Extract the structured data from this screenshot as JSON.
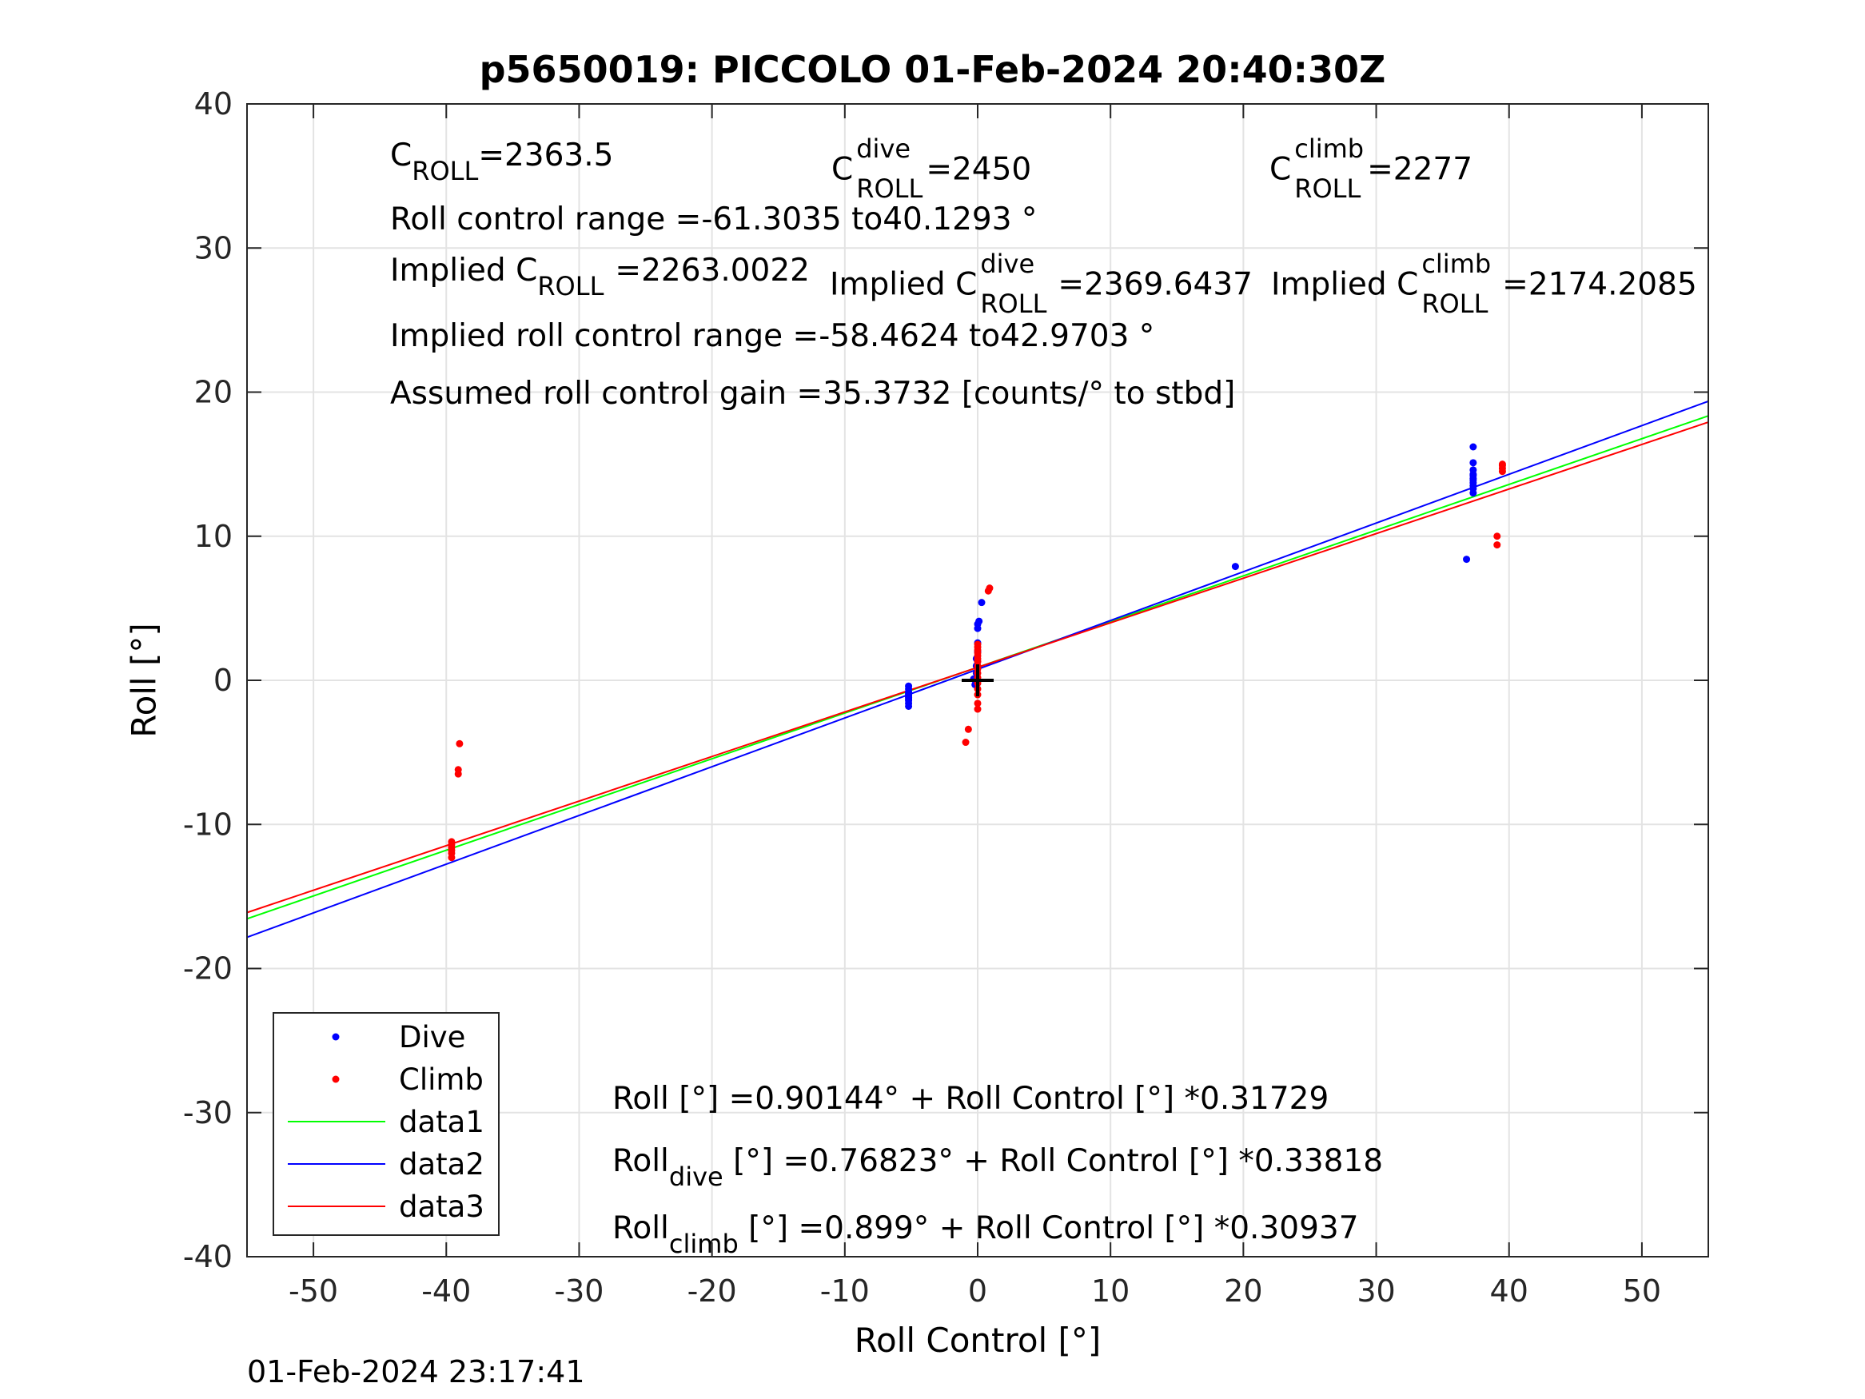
{
  "figure": {
    "title": "p5650019: PICCOLO 01-Feb-2024 20:40:30Z",
    "timestamp": "01-Feb-2024 23:17:41"
  },
  "annotations": {
    "c_roll": {
      "base": "C",
      "sub": "ROLL",
      "value": "=2363.5"
    },
    "c_roll_dive": {
      "base": "C",
      "sup": "dive",
      "sub": "ROLL",
      "value": "=2450"
    },
    "c_roll_climb": {
      "base": "C",
      "sup": "climb",
      "sub": "ROLL",
      "value": "=2277"
    },
    "range": "Roll control range =-61.3035 to40.1293 °",
    "implied_c_roll": {
      "prefix": "Implied C",
      "sub": "ROLL",
      "value": "=2263.0022"
    },
    "implied_c_roll_dive": {
      "prefix": "Implied C",
      "sup": "dive",
      "sub": "ROLL",
      "value": "=2369.6437"
    },
    "implied_c_roll_climb": {
      "prefix": "Implied C",
      "sup": "climb",
      "sub": "ROLL",
      "value": "=2174.2085"
    },
    "implied_range": "Implied roll control range =-58.4624 to42.9703 °",
    "gain": "Assumed roll control gain =35.3732 [counts/° to stbd]",
    "fit_all": "Roll [°] =0.90144° + Roll Control [°] *0.31729",
    "fit_dive": {
      "base": "Roll",
      "sub": "dive",
      "rest": " [°] =0.76823° + Roll Control [°] *0.33818"
    },
    "fit_climb": {
      "base": "Roll",
      "sub": "climb",
      "rest": " [°] =0.899° + Roll Control [°] *0.30937"
    }
  },
  "legend": {
    "placement": "bottom-left",
    "entries": [
      {
        "label": "Dive",
        "kind": "marker",
        "color": "#0000ff"
      },
      {
        "label": "Climb",
        "kind": "marker",
        "color": "#ff0000"
      },
      {
        "label": "data1",
        "kind": "line",
        "color": "#00ff00"
      },
      {
        "label": "data2",
        "kind": "line",
        "color": "#0000ff"
      },
      {
        "label": "data3",
        "kind": "line",
        "color": "#ff0000"
      }
    ]
  },
  "chart_data": {
    "type": "scatter",
    "title": "p5650019: PICCOLO 01-Feb-2024 20:40:30Z",
    "xlabel": "Roll Control [°]",
    "ylabel": "Roll [°]",
    "xlim": [
      -55,
      55
    ],
    "ylim": [
      -40,
      40
    ],
    "xticks": [
      -50,
      -40,
      -30,
      -20,
      -10,
      0,
      10,
      20,
      30,
      40,
      50
    ],
    "yticks": [
      -40,
      -30,
      -20,
      -10,
      0,
      10,
      20,
      30,
      40
    ],
    "grid": true,
    "legend_placement": "bottom-left",
    "center_marker": {
      "x": 0,
      "y": 0,
      "symbol": "+",
      "color": "#000000"
    },
    "series": [
      {
        "name": "Dive",
        "kind": "points",
        "color": "#0000ff",
        "x": [
          -5.2,
          -5.2,
          -5.2,
          -5.2,
          -5.2,
          -5.2,
          -5.2,
          -5.2,
          -5.2,
          -5.2,
          -5.2,
          -0.3,
          -0.2,
          -0.1,
          -0.1,
          -0.1,
          0,
          0,
          0,
          0,
          0.1,
          0.3,
          19.4,
          36.8,
          37.3,
          37.3,
          37.3,
          37.3,
          37.3,
          37.3,
          37.3,
          37.3,
          37.3,
          37.3,
          37.3
        ],
        "y": [
          -0.4,
          -0.6,
          -0.8,
          -0.9,
          -1.0,
          -1.1,
          -1.2,
          -1.3,
          -1.4,
          -1.6,
          -1.8,
          0.1,
          -0.3,
          0.5,
          1.0,
          1.5,
          2.0,
          2.6,
          3.6,
          3.9,
          4.1,
          5.4,
          7.9,
          8.4,
          13.0,
          13.3,
          13.5,
          13.7,
          13.9,
          14.0,
          14.2,
          14.3,
          14.6,
          15.1,
          16.2
        ]
      },
      {
        "name": "Climb",
        "kind": "points",
        "color": "#ff0000",
        "x": [
          -39.6,
          -39.6,
          -39.6,
          -39.6,
          -39.6,
          -39.6,
          -39.1,
          -39.1,
          -39.0,
          -0.9,
          -0.7,
          0,
          0,
          0,
          0,
          0,
          0,
          0,
          0,
          0,
          0,
          0,
          0,
          0,
          0,
          0,
          0,
          0.8,
          0.9,
          39.1,
          39.1,
          39.5,
          39.5,
          39.5,
          39.5
        ],
        "y": [
          -11.2,
          -11.4,
          -11.6,
          -11.8,
          -12.0,
          -12.3,
          -6.5,
          -6.2,
          -4.4,
          -4.3,
          -3.4,
          -2.0,
          -1.6,
          -1.0,
          -0.6,
          -0.2,
          0.2,
          0.5,
          0.8,
          1.0,
          1.3,
          1.5,
          1.7,
          1.9,
          2.1,
          2.3,
          2.5,
          6.2,
          6.4,
          9.4,
          10.0,
          14.5,
          14.7,
          14.9,
          15.0
        ]
      },
      {
        "name": "data1",
        "kind": "line",
        "color": "#00ff00",
        "intercept": 0.90144,
        "slope": 0.31729
      },
      {
        "name": "data2",
        "kind": "line",
        "color": "#0000ff",
        "intercept": 0.76823,
        "slope": 0.33818
      },
      {
        "name": "data3",
        "kind": "line",
        "color": "#ff0000",
        "intercept": 0.899,
        "slope": 0.30937
      }
    ]
  }
}
